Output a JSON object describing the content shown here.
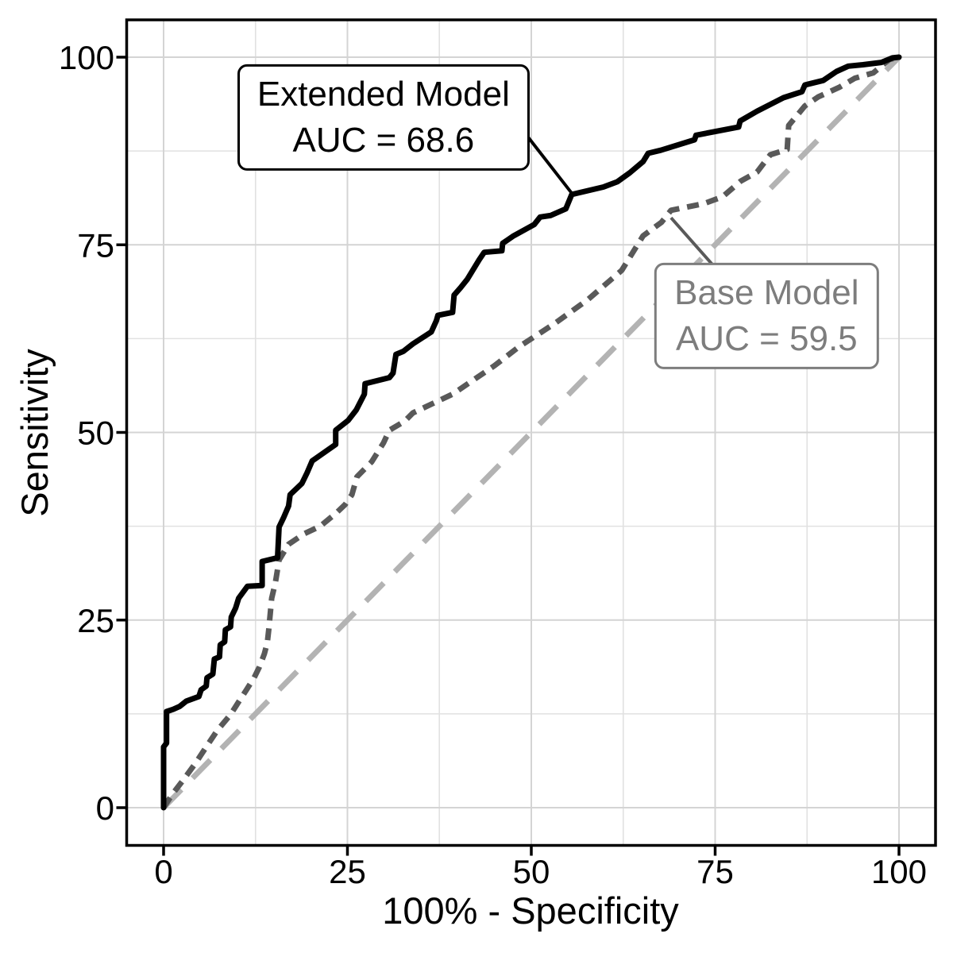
{
  "chart_data": {
    "type": "line",
    "title": "",
    "xlabel": "100% - Specificity",
    "ylabel": "Sensitivity",
    "xlim": [
      0,
      100
    ],
    "ylim": [
      0,
      100
    ],
    "x_ticks": [
      0,
      25,
      50,
      75,
      100
    ],
    "y_ticks": [
      0,
      25,
      50,
      75,
      100
    ],
    "grid": "major and minor gridlines, white panel, black border",
    "legend_position": "none (labelled callout boxes instead)",
    "colors": {
      "extended_curve": "#000000",
      "base_curve": "#595959",
      "reference_line": "#b3b3b3",
      "base_label": "#7d7d7d",
      "grid_major": "#d4d4d4",
      "grid_minor": "#e1e1e1",
      "panel_border": "#000000",
      "tick_mark": "#000000",
      "text": "#000000"
    },
    "series": [
      {
        "name": "Extended Model",
        "auc": 68.6,
        "line_style": "solid",
        "color": "#000000",
        "points": [
          [
            0,
            0
          ],
          [
            0,
            8.1
          ],
          [
            0.4,
            8.6
          ],
          [
            0.4,
            12.8
          ],
          [
            1.3,
            13.1
          ],
          [
            2.2,
            13.5
          ],
          [
            3.1,
            14.2
          ],
          [
            4.8,
            14.8
          ],
          [
            5.1,
            15.7
          ],
          [
            5.8,
            16.2
          ],
          [
            5.9,
            17.3
          ],
          [
            6.7,
            17.8
          ],
          [
            6.9,
            19.8
          ],
          [
            7.6,
            20.1
          ],
          [
            7.7,
            21.7
          ],
          [
            8.3,
            22.1
          ],
          [
            8.4,
            23.7
          ],
          [
            9.1,
            24.1
          ],
          [
            9.2,
            25.4
          ],
          [
            9.8,
            26.6
          ],
          [
            10.2,
            27.9
          ],
          [
            10.8,
            28.7
          ],
          [
            11.4,
            29.5
          ],
          [
            13.4,
            29.6
          ],
          [
            13.4,
            32.8
          ],
          [
            15.5,
            33.3
          ],
          [
            15.7,
            37.4
          ],
          [
            16.3,
            38.6
          ],
          [
            17,
            40.2
          ],
          [
            17.2,
            41.7
          ],
          [
            18.8,
            43.2
          ],
          [
            19.5,
            44.6
          ],
          [
            20.2,
            46.2
          ],
          [
            21.8,
            47.3
          ],
          [
            23.4,
            48.4
          ],
          [
            23.4,
            50.3
          ],
          [
            25.1,
            51.6
          ],
          [
            26.2,
            53
          ],
          [
            27.3,
            55.1
          ],
          [
            27.4,
            56.5
          ],
          [
            30.7,
            57.3
          ],
          [
            31.2,
            57.9
          ],
          [
            31.6,
            60.4
          ],
          [
            32.6,
            60.8
          ],
          [
            33.9,
            61.8
          ],
          [
            36.4,
            63.4
          ],
          [
            37.1,
            64.9
          ],
          [
            37.3,
            65.6
          ],
          [
            39.3,
            66
          ],
          [
            39.5,
            68.3
          ],
          [
            40.4,
            69.3
          ],
          [
            41.3,
            70.4
          ],
          [
            42.9,
            73
          ],
          [
            43.6,
            74
          ],
          [
            46,
            74.2
          ],
          [
            46.1,
            75.2
          ],
          [
            47.6,
            76.2
          ],
          [
            50.4,
            77.7
          ],
          [
            51.2,
            78.7
          ],
          [
            52.6,
            78.9
          ],
          [
            54.7,
            79.8
          ],
          [
            55.5,
            81.7
          ],
          [
            59.8,
            82.7
          ],
          [
            61.7,
            83.4
          ],
          [
            63.4,
            84.6
          ],
          [
            65.2,
            86.1
          ],
          [
            65.9,
            87.2
          ],
          [
            67.6,
            87.6
          ],
          [
            72.2,
            89
          ],
          [
            72.4,
            89.6
          ],
          [
            78.2,
            90.7
          ],
          [
            78.4,
            91.5
          ],
          [
            80.7,
            92.8
          ],
          [
            84.3,
            94.6
          ],
          [
            86.8,
            95.4
          ],
          [
            87.2,
            96.3
          ],
          [
            89.7,
            96.9
          ],
          [
            91.5,
            98.1
          ],
          [
            93.1,
            98.8
          ],
          [
            95.1,
            99
          ],
          [
            97.6,
            99.3
          ],
          [
            99.1,
            99.9
          ],
          [
            100,
            100
          ]
        ]
      },
      {
        "name": "Base Model",
        "auc": 59.5,
        "line_style": "dashed",
        "color": "#595959",
        "points": [
          [
            0,
            0
          ],
          [
            1.2,
            1.8
          ],
          [
            2.6,
            3.6
          ],
          [
            4.4,
            6
          ],
          [
            5.8,
            8.1
          ],
          [
            7.3,
            10.3
          ],
          [
            9.1,
            12.4
          ],
          [
            10.2,
            14.1
          ],
          [
            11.2,
            15.6
          ],
          [
            12.3,
            17.3
          ],
          [
            13,
            18.7
          ],
          [
            13.7,
            20.5
          ],
          [
            14.1,
            22
          ],
          [
            14.3,
            23.7
          ],
          [
            14.7,
            27.9
          ],
          [
            15.2,
            30
          ],
          [
            15.7,
            33
          ],
          [
            17,
            35.1
          ],
          [
            19.1,
            36.5
          ],
          [
            21.3,
            37.5
          ],
          [
            23.4,
            39.2
          ],
          [
            24.7,
            40.4
          ],
          [
            25.6,
            41.7
          ],
          [
            26.3,
            44.1
          ],
          [
            28.3,
            46.1
          ],
          [
            29.9,
            48.6
          ],
          [
            30.7,
            50.3
          ],
          [
            32.8,
            51.5
          ],
          [
            33.9,
            52.6
          ],
          [
            39.3,
            55.1
          ],
          [
            45,
            58.9
          ],
          [
            48.3,
            61.4
          ],
          [
            53.3,
            64.6
          ],
          [
            57.7,
            67.7
          ],
          [
            62.3,
            71.6
          ],
          [
            65.2,
            76.2
          ],
          [
            67.7,
            78
          ],
          [
            69,
            79.6
          ],
          [
            73.5,
            80.5
          ],
          [
            76,
            81.4
          ],
          [
            78.5,
            83.5
          ],
          [
            80.7,
            84.7
          ],
          [
            82.5,
            87
          ],
          [
            84.8,
            87.7
          ],
          [
            85,
            90.9
          ],
          [
            87.2,
            93.5
          ],
          [
            89,
            94.7
          ],
          [
            91.9,
            96
          ],
          [
            94,
            97.2
          ],
          [
            96.5,
            97.9
          ],
          [
            98.7,
            99.7
          ],
          [
            100,
            100
          ]
        ]
      },
      {
        "name": "Chance reference (diagonal)",
        "line_style": "longdash",
        "color": "#b3b3b3",
        "points": [
          [
            0,
            0
          ],
          [
            100,
            100
          ]
        ]
      }
    ],
    "annotations": [
      {
        "lines": [
          "Extended Model",
          "AUC = 68.6"
        ],
        "box_center": [
          29.9,
          92.0
        ],
        "leader": [
          [
            49.6,
            89.3
          ],
          [
            55.8,
            81.5
          ]
        ],
        "color": "#000000"
      },
      {
        "lines": [
          "Base Model",
          "AUC = 59.5"
        ],
        "box_center": [
          82.0,
          65.5
        ],
        "leader": [
          [
            69.0,
            78.6
          ],
          [
            74.6,
            72.4
          ]
        ],
        "color": "#7d7d7d"
      }
    ]
  }
}
